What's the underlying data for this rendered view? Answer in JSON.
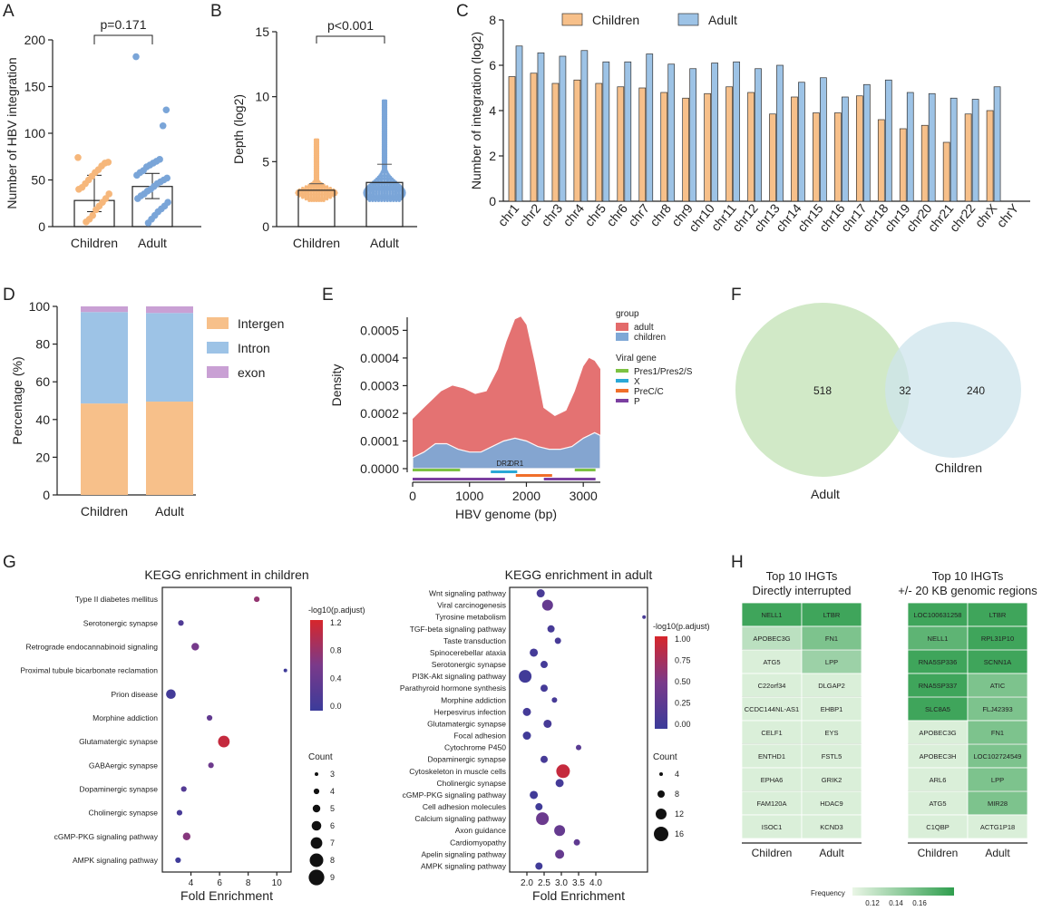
{
  "panel_labels": [
    "A",
    "B",
    "C",
    "D",
    "E",
    "F",
    "G",
    "H"
  ],
  "chart_data": [
    {
      "id": "A",
      "type": "scatter",
      "title": "p=0.171",
      "ylabel": "Number of HBV integration",
      "xlabel": "",
      "ylim": [
        0,
        200
      ],
      "yticks": [
        0,
        50,
        100,
        150,
        200
      ],
      "categories": [
        "Children",
        "Adult"
      ],
      "bar_means": [
        28,
        43
      ],
      "errors": [
        [
          16,
          55
        ],
        [
          30,
          57
        ]
      ],
      "series": [
        {
          "name": "Children",
          "color": "#f6b77b",
          "values": [
            74,
            69,
            68,
            65,
            61,
            58,
            54,
            50,
            46,
            42,
            40,
            35,
            30,
            26,
            22,
            18,
            12,
            8,
            5
          ]
        },
        {
          "name": "Adult",
          "color": "#7aa5d8",
          "values": [
            182,
            125,
            108,
            72,
            70,
            68,
            66,
            64,
            60,
            58,
            55,
            52,
            50,
            48,
            46,
            43,
            40,
            38,
            35,
            33,
            30,
            26,
            22,
            19,
            16,
            12,
            8,
            4
          ]
        }
      ]
    },
    {
      "id": "B",
      "type": "scatter",
      "title": "p<0.001",
      "ylabel": "Depth (log2)",
      "xlabel": "",
      "ylim": [
        0,
        15
      ],
      "yticks": [
        0,
        5,
        10,
        15
      ],
      "categories": [
        "Children",
        "Adult"
      ],
      "bar_means": [
        2.8,
        3.4
      ],
      "errors": [
        [
          2.3,
          3.3
        ],
        [
          2.1,
          4.8
        ]
      ],
      "series": [
        {
          "name": "Children",
          "color": "#f6b77b",
          "max": 6.8,
          "min": 2.0
        },
        {
          "name": "Adult",
          "color": "#7aa5d8",
          "max": 9.7,
          "min": 2.0
        }
      ]
    },
    {
      "id": "C",
      "type": "bar",
      "ylabel": "Number of integration (log2)",
      "xlabel": "",
      "ylim": [
        0,
        8
      ],
      "yticks": [
        0,
        2,
        4,
        6,
        8
      ],
      "categories": [
        "chr1",
        "chr2",
        "chr3",
        "chr4",
        "chr5",
        "chr6",
        "chr7",
        "chr8",
        "chr9",
        "chr10",
        "chr11",
        "chr12",
        "chr13",
        "chr14",
        "chr15",
        "chr16",
        "chr17",
        "chr18",
        "chr19",
        "chr20",
        "chr21",
        "chr22",
        "chrX",
        "chrY"
      ],
      "series": [
        {
          "name": "Children",
          "color": "#f7c08a",
          "values": [
            5.5,
            5.65,
            5.2,
            5.35,
            5.2,
            5.05,
            5.0,
            4.8,
            4.55,
            4.75,
            5.05,
            4.8,
            3.85,
            4.6,
            3.9,
            3.9,
            4.65,
            3.6,
            3.2,
            3.35,
            2.6,
            3.85,
            4.0,
            0
          ]
        },
        {
          "name": "Adult",
          "color": "#9dc3e6",
          "values": [
            6.85,
            6.55,
            6.4,
            6.65,
            6.15,
            6.15,
            6.5,
            6.05,
            5.85,
            6.1,
            6.15,
            5.85,
            6.0,
            5.25,
            5.45,
            4.6,
            5.15,
            5.35,
            4.8,
            4.75,
            4.55,
            4.5,
            5.05,
            0
          ]
        }
      ]
    },
    {
      "id": "D",
      "type": "bar",
      "ylabel": "Percentage (%)",
      "xlabel": "",
      "ylim": [
        0,
        100
      ],
      "yticks": [
        0,
        20,
        40,
        60,
        80,
        100
      ],
      "categories": [
        "Children",
        "Adult"
      ],
      "series": [
        {
          "name": "Intergen",
          "color": "#f7c08a",
          "values": [
            48.5,
            49.5
          ]
        },
        {
          "name": "Intron",
          "color": "#9dc3e6",
          "values": [
            48.5,
            47.0
          ]
        },
        {
          "name": "exon",
          "color": "#c9a0d4",
          "values": [
            3.0,
            3.5
          ]
        }
      ]
    },
    {
      "id": "E",
      "type": "area",
      "ylabel": "Density",
      "xlabel": "HBV genome (bp)",
      "xlim": [
        0,
        3300
      ],
      "xticks": [
        0,
        1000,
        2000,
        3000
      ],
      "ylim": [
        0,
        0.00058
      ],
      "yticks": [
        "0.0000",
        "0.0001",
        "0.0002",
        "0.0003",
        "0.0004",
        "0.0005"
      ],
      "legend_title": "group",
      "series": [
        {
          "name": "adult",
          "color": "#e36a6a",
          "x": [
            0,
            150,
            300,
            500,
            700,
            900,
            1100,
            1300,
            1500,
            1650,
            1800,
            1900,
            2000,
            2150,
            2300,
            2500,
            2700,
            2850,
            3000,
            3100,
            3200,
            3300
          ],
          "values": [
            0.00018,
            0.00021,
            0.00024,
            0.00028,
            0.0003,
            0.00029,
            0.00027,
            0.00028,
            0.00036,
            0.00046,
            0.00054,
            0.00055,
            0.00052,
            0.00038,
            0.00022,
            0.00019,
            0.00021,
            0.00028,
            0.00037,
            0.0004,
            0.00039,
            0.00036
          ]
        },
        {
          "name": "children",
          "color": "#7fa8d6",
          "x": [
            0,
            200,
            400,
            600,
            800,
            1000,
            1200,
            1400,
            1600,
            1800,
            2000,
            2200,
            2400,
            2600,
            2800,
            3000,
            3200,
            3300
          ],
          "values": [
            4e-05,
            6e-05,
            9e-05,
            9e-05,
            7e-05,
            6e-05,
            6e-05,
            8e-05,
            0.0001,
            0.00011,
            0.0001,
            8e-05,
            7e-05,
            7e-05,
            8e-05,
            0.00011,
            0.00013,
            0.00012
          ]
        }
      ],
      "gene_legend_title": "Viral gene",
      "genes": [
        {
          "name": "Pres1/Pres2/S",
          "color": "#7cc242",
          "ranges": [
            [
              0,
              835
            ],
            [
              2850,
              3215
            ]
          ]
        },
        {
          "name": "X",
          "color": "#2aa8d6",
          "ranges": [
            [
              1374,
              1838
            ]
          ]
        },
        {
          "name": "PreC/C",
          "color": "#f06f2a",
          "ranges": [
            [
              1814,
              2452
            ]
          ]
        },
        {
          "name": "P",
          "color": "#7b3fa0",
          "ranges": [
            [
              0,
              1623
            ],
            [
              2307,
              3215
            ]
          ]
        }
      ],
      "markers": [
        {
          "label": "DR2",
          "x": 1600
        },
        {
          "label": "DR1",
          "x": 1820
        }
      ]
    },
    {
      "id": "F",
      "type": "venn",
      "sets": [
        {
          "name": "Adult",
          "only": 518,
          "color": "#cfe8c4"
        },
        {
          "name": "Children",
          "only": 240,
          "color": "#cde4ec"
        }
      ],
      "intersection": 32
    },
    {
      "id": "G1",
      "type": "scatter",
      "title": "KEGG enrichment in children",
      "xlabel": "Fold Enrichment",
      "xlim": [
        2,
        11
      ],
      "xticks": [
        4,
        6,
        8,
        10
      ],
      "color_title": "-log10(p.adjust)",
      "color_range": [
        0,
        1.5
      ],
      "color_ticks": [
        "1.2",
        "0.8",
        "0.4",
        "0.0"
      ],
      "size_title": "Count",
      "size_ticks": [
        "3",
        "4",
        "5",
        "6",
        "7",
        "8",
        "9"
      ],
      "categories": [
        "Type II diabetes mellitus",
        "Serotonergic synapse",
        "Retrograde endocannabinoid signaling",
        "Proximal tubule bicarbonate reclamation",
        "Prion disease",
        "Morphine addiction",
        "Glutamatergic synapse",
        "GABAergic synapse",
        "Dopaminergic synapse",
        "Cholinergic synapse",
        "cGMP-PKG signaling pathway",
        "AMPK signaling pathway"
      ],
      "x": [
        8.6,
        3.3,
        4.3,
        10.6,
        2.6,
        5.3,
        6.3,
        5.4,
        3.5,
        3.2,
        3.7,
        3.1
      ],
      "count": [
        4,
        4,
        5,
        3,
        6,
        4,
        7,
        4,
        4,
        4,
        5,
        4
      ],
      "p": [
        0.95,
        0.25,
        0.7,
        0.05,
        0.1,
        0.45,
        1.35,
        0.6,
        0.3,
        0.15,
        0.85,
        0.05
      ]
    },
    {
      "id": "G2",
      "type": "scatter",
      "title": "KEGG enrichment in adult",
      "xlabel": "Fold Enrichment",
      "xlim": [
        1.5,
        5.5
      ],
      "xticks": [
        "2.0",
        "2.5",
        "3.0",
        "3.5",
        "4.0"
      ],
      "color_title": "-log10(p.adjust)",
      "color_range": [
        0,
        1.05
      ],
      "color_ticks": [
        "1.00",
        "0.75",
        "0.50",
        "0.25",
        "0.00"
      ],
      "size_title": "Count",
      "size_ticks": [
        "4",
        "8",
        "12",
        "16"
      ],
      "categories": [
        "Wnt signaling pathway",
        "Viral carcinogenesis",
        "Tyrosine metabolism",
        "TGF-beta signaling pathway",
        "Taste transduction",
        "Spinocerebellar ataxia",
        "Serotonergic synapse",
        "PI3K-Akt signaling pathway",
        "Parathyroid hormone synthesis",
        "Morphine addiction",
        "Herpesvirus infection",
        "Glutamatergic synapse",
        "Focal adhesion",
        "Cytochrome P450",
        "Dopaminergic synapse",
        "Cytoskeleton in muscle cells",
        "Cholinergic synapse",
        "cGMP-PKG signaling pathway",
        "Cell adhesion molecules",
        "Calcium signaling pathway",
        "Axon guidance",
        "Cardiomyopathy",
        "Apelin signaling pathway",
        "AMPK signaling pathway"
      ],
      "x": [
        2.4,
        2.6,
        5.4,
        2.7,
        2.9,
        2.2,
        2.5,
        1.95,
        2.5,
        2.8,
        2.0,
        2.6,
        2.0,
        3.5,
        2.5,
        3.05,
        2.95,
        2.2,
        2.35,
        2.45,
        2.95,
        3.45,
        2.95,
        2.35
      ],
      "count": [
        9,
        12,
        4,
        8,
        7,
        9,
        8,
        14,
        8,
        6,
        9,
        9,
        9,
        6,
        8,
        15,
        9,
        9,
        8,
        14,
        12,
        7,
        10,
        8
      ],
      "p": [
        0.12,
        0.35,
        0.12,
        0.1,
        0.1,
        0.08,
        0.08,
        0.05,
        0.08,
        0.1,
        0.08,
        0.1,
        0.05,
        0.25,
        0.1,
        0.95,
        0.08,
        0.05,
        0.05,
        0.4,
        0.35,
        0.3,
        0.35,
        0.05
      ]
    },
    {
      "id": "H",
      "type": "heatmap",
      "left": {
        "title1": "Top 10 IHGTs",
        "title2": "Directly interrupted",
        "rows": [
          [
            "NELL1",
            "LTBR"
          ],
          [
            "APOBEC3G",
            "FN1"
          ],
          [
            "ATG5",
            "LPP"
          ],
          [
            "C22orf34",
            "DLGAP2"
          ],
          [
            "CCDC144NL-AS1",
            "EHBP1"
          ],
          [
            "CELF1",
            "EYS"
          ],
          [
            "ENTHD1",
            "FSTL5"
          ],
          [
            "EPHA6",
            "GRIK2"
          ],
          [
            "FAM120A",
            "HDAC9"
          ],
          [
            "ISOC1",
            "KCND3"
          ]
        ],
        "freq": [
          [
            0.17,
            0.17
          ],
          [
            0.13,
            0.15
          ],
          [
            0.12,
            0.14
          ],
          [
            0.12,
            0.12
          ],
          [
            0.12,
            0.12
          ],
          [
            0.12,
            0.12
          ],
          [
            0.12,
            0.12
          ],
          [
            0.12,
            0.12
          ],
          [
            0.12,
            0.12
          ],
          [
            0.12,
            0.12
          ]
        ]
      },
      "right": {
        "title1": "Top 10 IHGTs",
        "title2": "+/- 20 KB genomic regions",
        "rows": [
          [
            "LOC100631258",
            "LTBR"
          ],
          [
            "NELL1",
            "RPL31P10"
          ],
          [
            "RNA5SP336",
            "SCNN1A"
          ],
          [
            "RNA5SP337",
            "ATIC"
          ],
          [
            "SLC8A5",
            "FLJ42393"
          ],
          [
            "APOBEC3G",
            "FN1"
          ],
          [
            "APOBEC3H",
            "LOC102724549"
          ],
          [
            "ARL6",
            "LPP"
          ],
          [
            "ATG5",
            "MIR28"
          ],
          [
            "C1QBP",
            "ACTG1P18"
          ]
        ],
        "freq": [
          [
            0.17,
            0.17
          ],
          [
            0.16,
            0.17
          ],
          [
            0.17,
            0.17
          ],
          [
            0.17,
            0.15
          ],
          [
            0.17,
            0.15
          ],
          [
            0.12,
            0.15
          ],
          [
            0.12,
            0.15
          ],
          [
            0.12,
            0.15
          ],
          [
            0.12,
            0.15
          ],
          [
            0.12,
            0.12
          ]
        ]
      },
      "xlabels": [
        "Children",
        "Adult"
      ],
      "legend_title": "Frequency",
      "legend_ticks": [
        "0.12",
        "0.14",
        "0.16"
      ]
    }
  ]
}
